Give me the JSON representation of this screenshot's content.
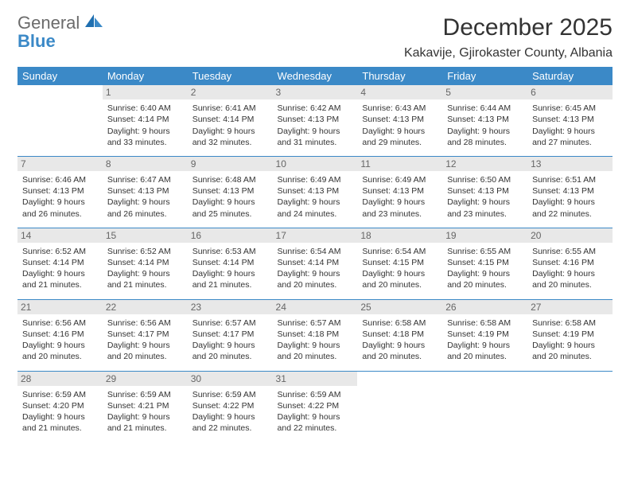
{
  "logo": {
    "word1": "General",
    "word2": "Blue"
  },
  "title": "December 2025",
  "location": "Kakavije, Gjirokaster County, Albania",
  "header_bg": "#3b89c7",
  "daynum_bg": "#e8e8e8",
  "row_border": "#3b89c7",
  "days": [
    "Sunday",
    "Monday",
    "Tuesday",
    "Wednesday",
    "Thursday",
    "Friday",
    "Saturday"
  ],
  "weeks": [
    [
      {
        "n": "",
        "lines": []
      },
      {
        "n": "1",
        "lines": [
          "Sunrise: 6:40 AM",
          "Sunset: 4:14 PM",
          "Daylight: 9 hours and 33 minutes."
        ]
      },
      {
        "n": "2",
        "lines": [
          "Sunrise: 6:41 AM",
          "Sunset: 4:14 PM",
          "Daylight: 9 hours and 32 minutes."
        ]
      },
      {
        "n": "3",
        "lines": [
          "Sunrise: 6:42 AM",
          "Sunset: 4:13 PM",
          "Daylight: 9 hours and 31 minutes."
        ]
      },
      {
        "n": "4",
        "lines": [
          "Sunrise: 6:43 AM",
          "Sunset: 4:13 PM",
          "Daylight: 9 hours and 29 minutes."
        ]
      },
      {
        "n": "5",
        "lines": [
          "Sunrise: 6:44 AM",
          "Sunset: 4:13 PM",
          "Daylight: 9 hours and 28 minutes."
        ]
      },
      {
        "n": "6",
        "lines": [
          "Sunrise: 6:45 AM",
          "Sunset: 4:13 PM",
          "Daylight: 9 hours and 27 minutes."
        ]
      }
    ],
    [
      {
        "n": "7",
        "lines": [
          "Sunrise: 6:46 AM",
          "Sunset: 4:13 PM",
          "Daylight: 9 hours and 26 minutes."
        ]
      },
      {
        "n": "8",
        "lines": [
          "Sunrise: 6:47 AM",
          "Sunset: 4:13 PM",
          "Daylight: 9 hours and 26 minutes."
        ]
      },
      {
        "n": "9",
        "lines": [
          "Sunrise: 6:48 AM",
          "Sunset: 4:13 PM",
          "Daylight: 9 hours and 25 minutes."
        ]
      },
      {
        "n": "10",
        "lines": [
          "Sunrise: 6:49 AM",
          "Sunset: 4:13 PM",
          "Daylight: 9 hours and 24 minutes."
        ]
      },
      {
        "n": "11",
        "lines": [
          "Sunrise: 6:49 AM",
          "Sunset: 4:13 PM",
          "Daylight: 9 hours and 23 minutes."
        ]
      },
      {
        "n": "12",
        "lines": [
          "Sunrise: 6:50 AM",
          "Sunset: 4:13 PM",
          "Daylight: 9 hours and 23 minutes."
        ]
      },
      {
        "n": "13",
        "lines": [
          "Sunrise: 6:51 AM",
          "Sunset: 4:13 PM",
          "Daylight: 9 hours and 22 minutes."
        ]
      }
    ],
    [
      {
        "n": "14",
        "lines": [
          "Sunrise: 6:52 AM",
          "Sunset: 4:14 PM",
          "Daylight: 9 hours and 21 minutes."
        ]
      },
      {
        "n": "15",
        "lines": [
          "Sunrise: 6:52 AM",
          "Sunset: 4:14 PM",
          "Daylight: 9 hours and 21 minutes."
        ]
      },
      {
        "n": "16",
        "lines": [
          "Sunrise: 6:53 AM",
          "Sunset: 4:14 PM",
          "Daylight: 9 hours and 21 minutes."
        ]
      },
      {
        "n": "17",
        "lines": [
          "Sunrise: 6:54 AM",
          "Sunset: 4:14 PM",
          "Daylight: 9 hours and 20 minutes."
        ]
      },
      {
        "n": "18",
        "lines": [
          "Sunrise: 6:54 AM",
          "Sunset: 4:15 PM",
          "Daylight: 9 hours and 20 minutes."
        ]
      },
      {
        "n": "19",
        "lines": [
          "Sunrise: 6:55 AM",
          "Sunset: 4:15 PM",
          "Daylight: 9 hours and 20 minutes."
        ]
      },
      {
        "n": "20",
        "lines": [
          "Sunrise: 6:55 AM",
          "Sunset: 4:16 PM",
          "Daylight: 9 hours and 20 minutes."
        ]
      }
    ],
    [
      {
        "n": "21",
        "lines": [
          "Sunrise: 6:56 AM",
          "Sunset: 4:16 PM",
          "Daylight: 9 hours and 20 minutes."
        ]
      },
      {
        "n": "22",
        "lines": [
          "Sunrise: 6:56 AM",
          "Sunset: 4:17 PM",
          "Daylight: 9 hours and 20 minutes."
        ]
      },
      {
        "n": "23",
        "lines": [
          "Sunrise: 6:57 AM",
          "Sunset: 4:17 PM",
          "Daylight: 9 hours and 20 minutes."
        ]
      },
      {
        "n": "24",
        "lines": [
          "Sunrise: 6:57 AM",
          "Sunset: 4:18 PM",
          "Daylight: 9 hours and 20 minutes."
        ]
      },
      {
        "n": "25",
        "lines": [
          "Sunrise: 6:58 AM",
          "Sunset: 4:18 PM",
          "Daylight: 9 hours and 20 minutes."
        ]
      },
      {
        "n": "26",
        "lines": [
          "Sunrise: 6:58 AM",
          "Sunset: 4:19 PM",
          "Daylight: 9 hours and 20 minutes."
        ]
      },
      {
        "n": "27",
        "lines": [
          "Sunrise: 6:58 AM",
          "Sunset: 4:19 PM",
          "Daylight: 9 hours and 20 minutes."
        ]
      }
    ],
    [
      {
        "n": "28",
        "lines": [
          "Sunrise: 6:59 AM",
          "Sunset: 4:20 PM",
          "Daylight: 9 hours and 21 minutes."
        ]
      },
      {
        "n": "29",
        "lines": [
          "Sunrise: 6:59 AM",
          "Sunset: 4:21 PM",
          "Daylight: 9 hours and 21 minutes."
        ]
      },
      {
        "n": "30",
        "lines": [
          "Sunrise: 6:59 AM",
          "Sunset: 4:22 PM",
          "Daylight: 9 hours and 22 minutes."
        ]
      },
      {
        "n": "31",
        "lines": [
          "Sunrise: 6:59 AM",
          "Sunset: 4:22 PM",
          "Daylight: 9 hours and 22 minutes."
        ]
      },
      {
        "n": "",
        "lines": []
      },
      {
        "n": "",
        "lines": []
      },
      {
        "n": "",
        "lines": []
      }
    ]
  ]
}
